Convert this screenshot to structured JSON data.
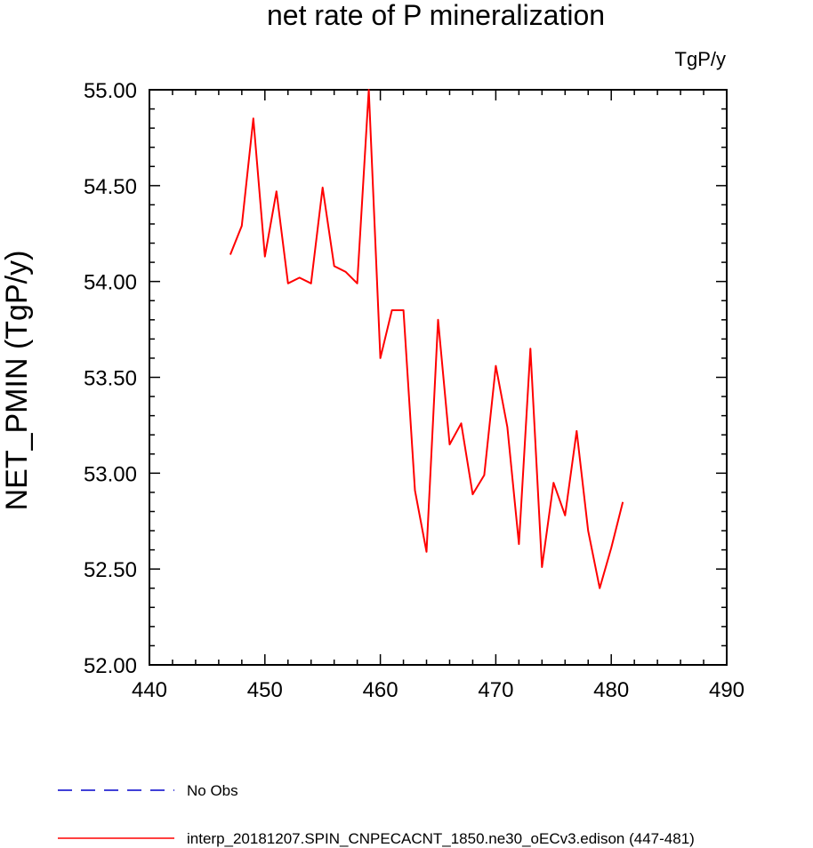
{
  "chart_data": {
    "type": "line",
    "title": "net rate of P mineralization",
    "units_label": "TgP/y",
    "ylabel": "NET_PMIN  (TgP/y)",
    "xlabel": "",
    "xlim": [
      440,
      490
    ],
    "ylim": [
      52.0,
      55.0
    ],
    "x_ticks": [
      "440",
      "450",
      "460",
      "470",
      "480",
      "490"
    ],
    "y_ticks": [
      "52.00",
      "52.50",
      "53.00",
      "53.50",
      "54.00",
      "54.50",
      "55.00"
    ],
    "grid": false,
    "legend_position": "bottom-left",
    "series": [
      {
        "name": "interp_20181207.SPIN_CNPECACNT_1850.ne30_oECv3.edison (447-481)",
        "color": "#ff0000",
        "style": "solid",
        "x": [
          447,
          448,
          449,
          450,
          451,
          452,
          453,
          454,
          455,
          456,
          457,
          458,
          459,
          460,
          461,
          462,
          463,
          464,
          465,
          466,
          467,
          468,
          469,
          470,
          471,
          472,
          473,
          474,
          475,
          476,
          477,
          478,
          479,
          480,
          481
        ],
        "y": [
          54.14,
          54.29,
          54.85,
          54.13,
          54.47,
          53.99,
          54.02,
          53.99,
          54.49,
          54.08,
          54.05,
          53.99,
          55.0,
          53.6,
          53.85,
          53.85,
          52.91,
          52.59,
          53.8,
          53.15,
          53.26,
          52.89,
          52.99,
          53.56,
          53.24,
          52.63,
          53.65,
          52.51,
          52.95,
          52.78,
          53.22,
          52.7,
          52.4,
          52.61,
          52.85
        ]
      }
    ],
    "legend": [
      {
        "label": "No Obs",
        "color": "#0000cc",
        "style": "dashed"
      },
      {
        "label": "interp_20181207.SPIN_CNPECACNT_1850.ne30_oECv3.edison (447-481)",
        "color": "#ff0000",
        "style": "solid"
      }
    ]
  }
}
